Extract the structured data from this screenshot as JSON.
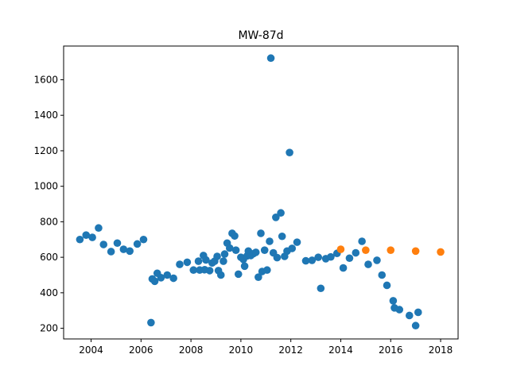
{
  "chart_data": {
    "type": "scatter",
    "title": "MW-87d",
    "xlabel": "",
    "ylabel": "",
    "xlim": [
      2002.9,
      2018.7
    ],
    "ylim": [
      140,
      1790
    ],
    "x_ticks": [
      2004,
      2006,
      2008,
      2010,
      2012,
      2014,
      2016,
      2018
    ],
    "x_tick_labels": [
      "2004",
      "2006",
      "2008",
      "2010",
      "2012",
      "2014",
      "2016",
      "2018"
    ],
    "y_ticks": [
      200,
      400,
      600,
      800,
      1000,
      1200,
      1400,
      1600
    ],
    "y_tick_labels": [
      "200",
      "400",
      "600",
      "800",
      "1000",
      "1200",
      "1400",
      "1600"
    ],
    "grid": false,
    "legend": false,
    "series": [
      {
        "color": "#1f77b4",
        "points": [
          [
            2003.55,
            700
          ],
          [
            2003.8,
            725
          ],
          [
            2004.05,
            712
          ],
          [
            2004.3,
            765
          ],
          [
            2004.5,
            672
          ],
          [
            2004.8,
            632
          ],
          [
            2005.05,
            680
          ],
          [
            2005.3,
            645
          ],
          [
            2005.55,
            635
          ],
          [
            2005.85,
            675
          ],
          [
            2006.1,
            700
          ],
          [
            2006.4,
            232
          ],
          [
            2006.45,
            478
          ],
          [
            2006.55,
            465
          ],
          [
            2006.65,
            510
          ],
          [
            2006.8,
            485
          ],
          [
            2007.05,
            500
          ],
          [
            2007.3,
            482
          ],
          [
            2007.55,
            560
          ],
          [
            2007.85,
            572
          ],
          [
            2008.1,
            528
          ],
          [
            2008.3,
            578
          ],
          [
            2008.35,
            528
          ],
          [
            2008.5,
            610
          ],
          [
            2008.55,
            530
          ],
          [
            2008.6,
            585
          ],
          [
            2008.75,
            525
          ],
          [
            2008.85,
            568
          ],
          [
            2008.95,
            578
          ],
          [
            2009.05,
            605
          ],
          [
            2009.1,
            525
          ],
          [
            2009.2,
            500
          ],
          [
            2009.3,
            578
          ],
          [
            2009.35,
            618
          ],
          [
            2009.45,
            680
          ],
          [
            2009.55,
            652
          ],
          [
            2009.65,
            735
          ],
          [
            2009.75,
            720
          ],
          [
            2009.8,
            640
          ],
          [
            2009.9,
            505
          ],
          [
            2010.0,
            600
          ],
          [
            2010.1,
            588
          ],
          [
            2010.15,
            550
          ],
          [
            2010.25,
            608
          ],
          [
            2010.3,
            635
          ],
          [
            2010.4,
            610
          ],
          [
            2010.5,
            620
          ],
          [
            2010.6,
            628
          ],
          [
            2010.7,
            488
          ],
          [
            2010.8,
            735
          ],
          [
            2010.85,
            520
          ],
          [
            2010.95,
            640
          ],
          [
            2011.05,
            528
          ],
          [
            2011.15,
            690
          ],
          [
            2011.2,
            1722
          ],
          [
            2011.3,
            625
          ],
          [
            2011.4,
            825
          ],
          [
            2011.45,
            598
          ],
          [
            2011.6,
            850
          ],
          [
            2011.65,
            718
          ],
          [
            2011.75,
            605
          ],
          [
            2011.85,
            635
          ],
          [
            2011.95,
            1190
          ],
          [
            2012.05,
            650
          ],
          [
            2012.25,
            685
          ],
          [
            2012.6,
            580
          ],
          [
            2012.85,
            583
          ],
          [
            2013.1,
            600
          ],
          [
            2013.2,
            425
          ],
          [
            2013.4,
            592
          ],
          [
            2013.6,
            602
          ],
          [
            2013.85,
            622
          ],
          [
            2014.1,
            540
          ],
          [
            2014.35,
            595
          ],
          [
            2014.6,
            625
          ],
          [
            2014.85,
            690
          ],
          [
            2015.1,
            560
          ],
          [
            2015.45,
            583
          ],
          [
            2015.65,
            500
          ],
          [
            2015.85,
            442
          ],
          [
            2016.1,
            355
          ],
          [
            2016.15,
            315
          ],
          [
            2016.35,
            305
          ],
          [
            2016.75,
            272
          ],
          [
            2017.0,
            215
          ],
          [
            2017.1,
            290
          ]
        ]
      },
      {
        "color": "#ff7f0e",
        "points": [
          [
            2014.0,
            645
          ],
          [
            2015.0,
            640
          ],
          [
            2016.0,
            640
          ],
          [
            2017.0,
            635
          ],
          [
            2018.0,
            630
          ]
        ]
      }
    ]
  }
}
